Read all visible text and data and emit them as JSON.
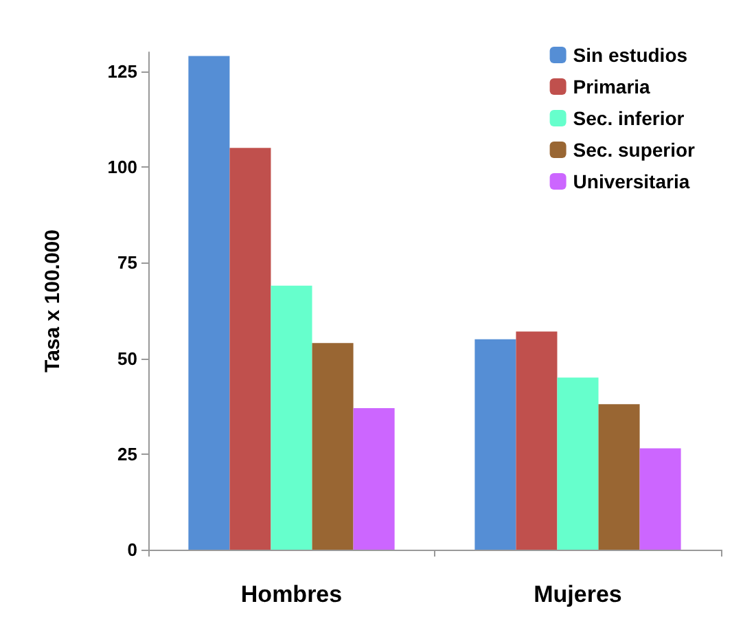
{
  "chart_data": {
    "type": "bar",
    "ylabel": "Tasa x 100.000",
    "categories": [
      "Hombres",
      "Mujeres"
    ],
    "series": [
      {
        "name": "Sin estudios",
        "color": "#558ed5",
        "values": [
          129,
          55
        ]
      },
      {
        "name": "Primaria",
        "color": "#c0504d",
        "values": [
          105,
          57
        ]
      },
      {
        "name": "Sec. inferior",
        "color": "#66ffcc",
        "values": [
          69,
          45
        ]
      },
      {
        "name": "Sec. superior",
        "color": "#996633",
        "values": [
          54,
          38
        ]
      },
      {
        "name": "Universitaria",
        "color": "#cc66ff",
        "values": [
          37,
          26.5
        ]
      }
    ],
    "ylim": [
      0,
      130
    ],
    "yticks": [
      0,
      25,
      50,
      75,
      100,
      125
    ],
    "grid": false,
    "legend": "top right"
  }
}
